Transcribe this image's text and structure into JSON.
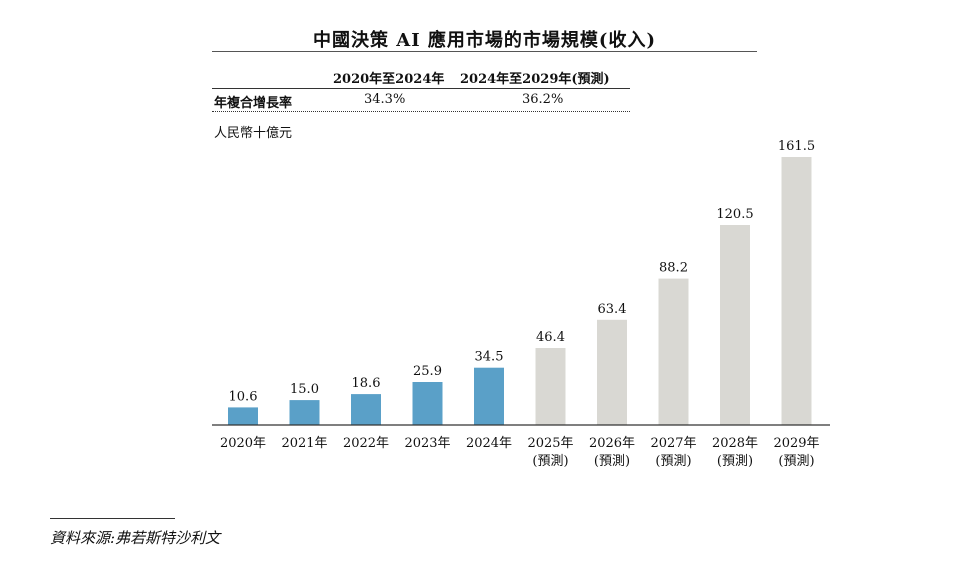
{
  "chart_data": {
    "type": "bar",
    "title": "中國決策 AI 應用市場的市場規模(收入)",
    "ylabel": "人民幣十億元",
    "categories": [
      {
        "year": "2020年",
        "note": ""
      },
      {
        "year": "2021年",
        "note": ""
      },
      {
        "year": "2022年",
        "note": ""
      },
      {
        "year": "2023年",
        "note": ""
      },
      {
        "year": "2024年",
        "note": ""
      },
      {
        "year": "2025年",
        "note": "(預測)"
      },
      {
        "year": "2026年",
        "note": "(預測)"
      },
      {
        "year": "2027年",
        "note": "(預測)"
      },
      {
        "year": "2028年",
        "note": "(預測)"
      },
      {
        "year": "2029年",
        "note": "(預測)"
      }
    ],
    "values": [
      10.6,
      15.0,
      18.6,
      25.9,
      34.5,
      46.4,
      63.4,
      88.2,
      120.5,
      161.5
    ],
    "value_labels": [
      "10.6",
      "15.0",
      "18.6",
      "25.9",
      "34.5",
      "46.4",
      "63.4",
      "88.2",
      "120.5",
      "161.5"
    ],
    "ylim": [
      0,
      161.5
    ],
    "grid": false,
    "colors": {
      "historical": "#5aa0c8",
      "forecast": "#d9d8d3",
      "axis": "#333333"
    },
    "forecast_start_index": 5
  },
  "cagr_table": {
    "headers": [
      "2020年至2024年",
      "2024年至2029年(預測)"
    ],
    "row_label": "年複合增長率",
    "values": [
      "34.3%",
      "36.2%"
    ]
  },
  "source": "資料來源:弗若斯特沙利文"
}
